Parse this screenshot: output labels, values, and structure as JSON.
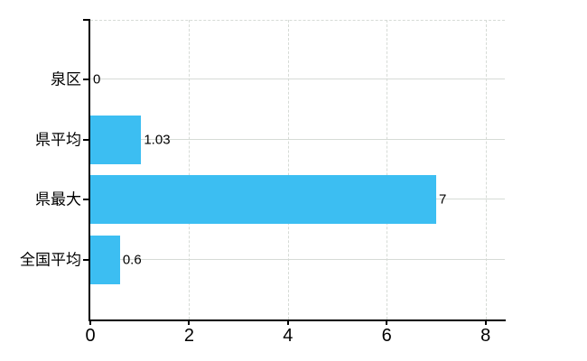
{
  "chart_data": {
    "type": "bar",
    "orientation": "horizontal",
    "title": "",
    "categories": [
      "泉区",
      "県平均",
      "県最大",
      "全国平均"
    ],
    "values": [
      0,
      1.03,
      7,
      0.6
    ],
    "value_labels": [
      "0",
      "1.03",
      "7",
      "0.6"
    ],
    "x_ticks": [
      "0",
      "2",
      "4",
      "6",
      "8"
    ],
    "x_tick_values": [
      0,
      2,
      4,
      6,
      8
    ],
    "xlim": [
      0,
      8.39
    ],
    "grid": true,
    "legend": false,
    "gridline_style": "vertical dashed, horizontal solid, top border dashed",
    "bar_color": "#3cbef2",
    "grid_color": "#d6dbd6",
    "axis_color": "#000000",
    "text_color": "#000000",
    "background_color": "#ffffff"
  }
}
